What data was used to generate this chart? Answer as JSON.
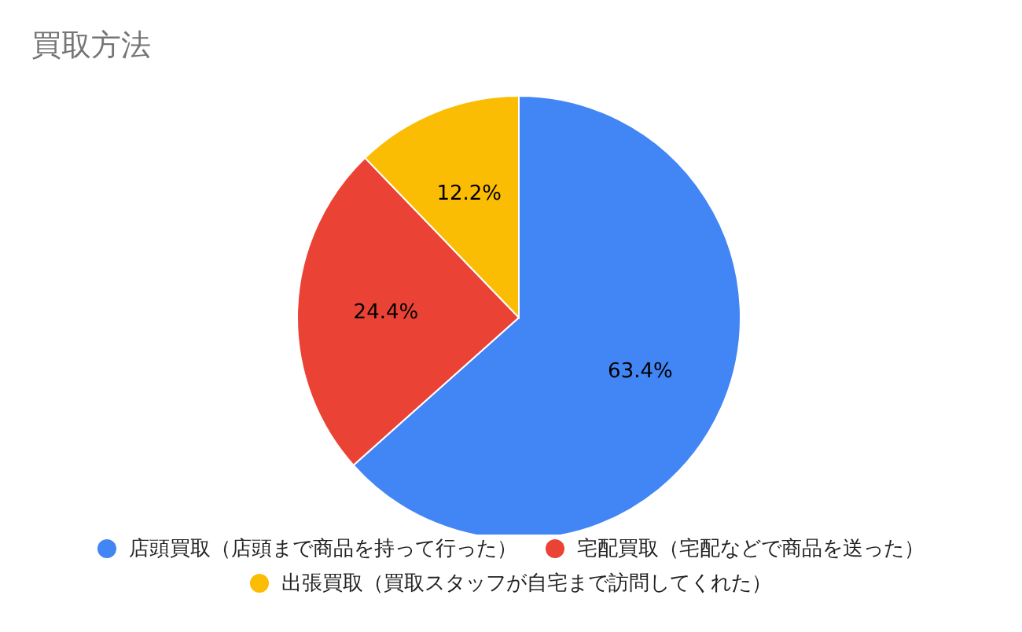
{
  "chart_data": {
    "type": "pie",
    "title": "買取方法",
    "categories": [
      "店頭買取（店頭まで商品を持って行った）",
      "宅配買取（宅配などで商品を送った）",
      "出張買取（買取スタッフが自宅まで訪問してくれた）"
    ],
    "values": [
      63.4,
      24.4,
      12.2
    ],
    "colors": [
      "#4285f4",
      "#ea4335",
      "#fbbc04"
    ],
    "value_labels": [
      "63.4%",
      "24.4%",
      "12.2%"
    ],
    "legend": "bottom"
  }
}
